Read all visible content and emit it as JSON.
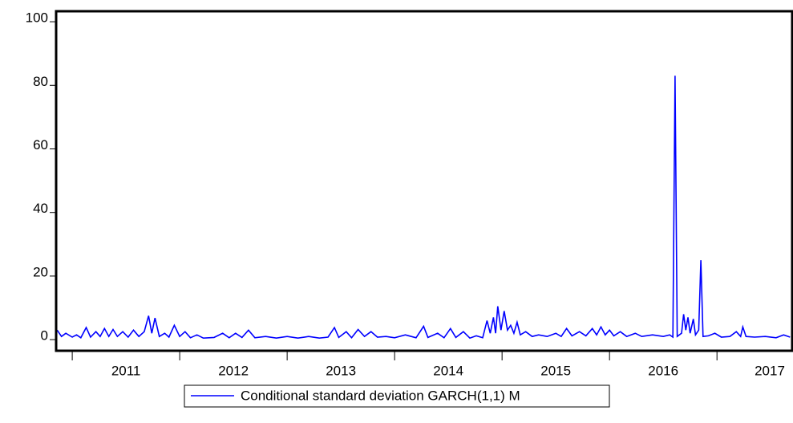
{
  "chart_data": {
    "type": "line",
    "x": [
      2010.86,
      2010.9,
      2010.94,
      2011.0,
      2011.04,
      2011.08,
      2011.13,
      2011.17,
      2011.22,
      2011.26,
      2011.3,
      2011.34,
      2011.38,
      2011.42,
      2011.47,
      2011.52,
      2011.57,
      2011.62,
      2011.67,
      2011.71,
      2011.74,
      2011.77,
      2011.81,
      2011.86,
      2011.9,
      2011.95,
      2012.0,
      2012.05,
      2012.1,
      2012.16,
      2012.22,
      2012.32,
      2012.4,
      2012.46,
      2012.52,
      2012.58,
      2012.64,
      2012.7,
      2012.8,
      2012.9,
      2013.0,
      2013.1,
      2013.2,
      2013.3,
      2013.38,
      2013.44,
      2013.48,
      2013.55,
      2013.6,
      2013.66,
      2013.72,
      2013.78,
      2013.84,
      2013.92,
      2014.0,
      2014.1,
      2014.2,
      2014.27,
      2014.31,
      2014.4,
      2014.46,
      2014.52,
      2014.57,
      2014.64,
      2014.7,
      2014.76,
      2014.82,
      2014.86,
      2014.89,
      2014.92,
      2014.94,
      2014.96,
      2014.99,
      2015.02,
      2015.05,
      2015.08,
      2015.11,
      2015.14,
      2015.17,
      2015.22,
      2015.28,
      2015.34,
      2015.42,
      2015.5,
      2015.55,
      2015.6,
      2015.65,
      2015.72,
      2015.78,
      2015.84,
      2015.88,
      2015.92,
      2015.96,
      2016.0,
      2016.04,
      2016.1,
      2016.16,
      2016.24,
      2016.3,
      2016.4,
      2016.5,
      2016.56,
      2016.59,
      2016.61,
      2016.63,
      2016.67,
      2016.69,
      2016.71,
      2016.73,
      2016.75,
      2016.78,
      2016.8,
      2016.83,
      2016.85,
      2016.87,
      2016.92,
      2016.98,
      2017.04,
      2017.12,
      2017.18,
      2017.22,
      2017.24,
      2017.27,
      2017.35,
      2017.45,
      2017.55,
      2017.62,
      2017.68
    ],
    "series": [
      {
        "name": "Conditional standard deviation GARCH(1,1) M",
        "color": "#0000ff",
        "values": [
          3,
          1,
          2,
          0.8,
          1.5,
          0.6,
          3.8,
          0.8,
          2.5,
          1,
          3.5,
          1,
          3.2,
          1,
          2.5,
          0.8,
          3,
          1,
          2.5,
          7.5,
          2,
          6.8,
          1,
          2,
          0.8,
          4.5,
          1,
          2.5,
          0.6,
          1.5,
          0.5,
          0.7,
          2,
          0.6,
          2,
          0.7,
          3,
          0.6,
          1,
          0.5,
          1,
          0.5,
          1,
          0.5,
          0.8,
          3.8,
          0.7,
          2.5,
          0.6,
          3.2,
          1,
          2.5,
          0.8,
          1,
          0.6,
          1.5,
          0.6,
          4.2,
          0.7,
          2,
          0.6,
          3.5,
          0.7,
          2.5,
          0.5,
          1.2,
          0.6,
          6,
          2,
          7,
          2,
          10.5,
          3,
          9,
          3,
          4.5,
          2,
          5.5,
          1.5,
          2.5,
          1,
          1.5,
          1,
          2,
          1,
          3.5,
          1.2,
          2.5,
          1.2,
          3.5,
          1.5,
          4,
          1.5,
          3,
          1.2,
          2.5,
          1,
          2,
          1,
          1.5,
          1,
          1.5,
          0.8,
          83,
          1,
          2,
          8,
          3,
          7,
          2,
          6.5,
          1.5,
          3,
          25,
          1,
          1.2,
          2,
          0.8,
          1,
          2.5,
          1,
          4,
          1,
          0.8,
          1,
          0.6,
          1.5,
          0.8
        ]
      }
    ],
    "xlim": [
      2010.85,
      2017.7
    ],
    "xticks": [
      {
        "value": 2011,
        "label": "2011"
      },
      {
        "value": 2012,
        "label": "2012"
      },
      {
        "value": 2013,
        "label": "2013"
      },
      {
        "value": 2014,
        "label": "2014"
      },
      {
        "value": 2015,
        "label": "2015"
      },
      {
        "value": 2016,
        "label": "2016"
      },
      {
        "value": 2017,
        "label": "2017"
      }
    ],
    "ylim": [
      -3.5,
      103.3
    ],
    "yticks": [
      0,
      20,
      40,
      60,
      80,
      100
    ],
    "grid": false,
    "legend": "bottom"
  }
}
